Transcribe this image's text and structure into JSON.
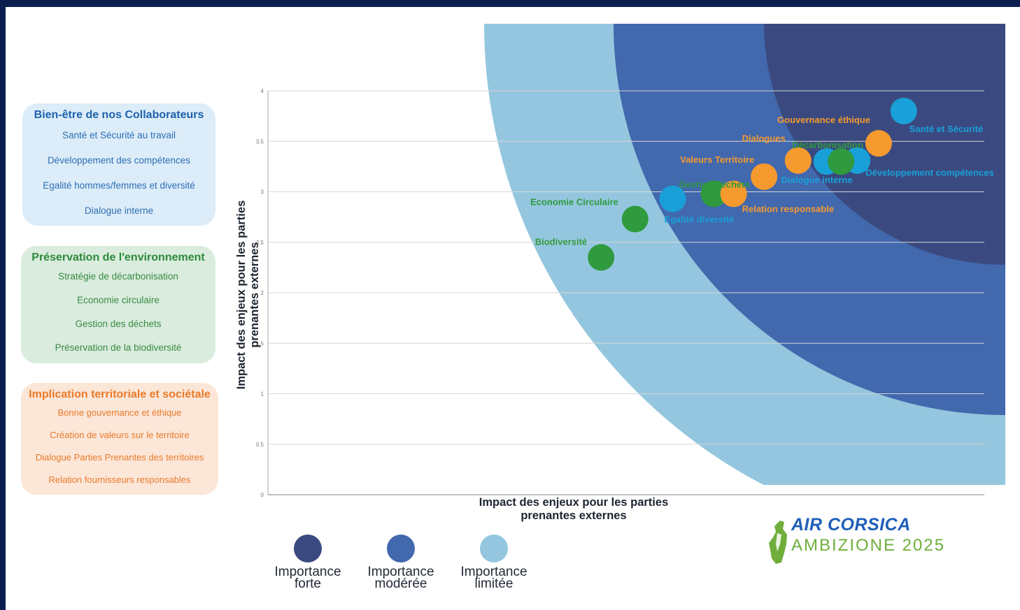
{
  "colors": {
    "importance_forte": "#3a4a80",
    "importance_moderee": "#4268ae",
    "importance_limitee": "#94c7df",
    "collaborateurs": "#1aa0d8",
    "environnement": "#2f9a3e",
    "territoire": "#f59a2e"
  },
  "legend_boxes": [
    {
      "title": "Bien-être de nos Collaborateurs",
      "items": [
        "Santé et Sécurité au travail",
        "Développement des compétences",
        "Egalité hommes/femmes et diversité",
        "Dialogue interne"
      ]
    },
    {
      "title": "Préservation de l'environnement",
      "items": [
        "Stratégie de décarbonisation",
        "Economie circulaire",
        "Gestion des déchets",
        "Préservation de la biodiversité"
      ]
    },
    {
      "title": "Implication territoriale et sociétale",
      "items": [
        "Bonne gouvernance et éthique",
        "Création de valeurs sur le territoire",
        "Dialogue Parties Prenantes des territoires",
        "Relation fournisseurs responsables"
      ]
    }
  ],
  "importance_legend": [
    {
      "label_line1": "Importance",
      "label_line2": "forte",
      "color": "#3a4a80"
    },
    {
      "label_line1": "Importance",
      "label_line2": "modérée",
      "color": "#4268ae"
    },
    {
      "label_line1": "Importance",
      "label_line2": "limitée",
      "color": "#94c7df"
    }
  ],
  "logo": {
    "name": "AIR CORSICA",
    "subtitle": "AMBIZIONE 2025"
  },
  "chart_data": {
    "type": "scatter",
    "xlabel": "Impact des enjeux pour les parties prenantes externes",
    "ylabel": "Impact des enjeux pour les parties prenantes externes",
    "ylim": [
      0,
      4
    ],
    "y_ticks": [
      "0",
      "0.5",
      "1",
      "1.5",
      "2",
      "2.5",
      "3",
      "3.5",
      "4"
    ],
    "xlim": [
      0,
      4
    ],
    "grid": "horizontal",
    "points": [
      {
        "label": "Santé et Sécurité",
        "category": "collaborateurs",
        "x": 3.55,
        "y": 3.8
      },
      {
        "label": "Développement compétences",
        "category": "collaborateurs",
        "x": 3.29,
        "y": 3.31
      },
      {
        "label": "Dialogue interne",
        "category": "collaborateurs",
        "x": 3.12,
        "y": 3.3
      },
      {
        "label": "Egalité diversité",
        "category": "collaborateurs",
        "x": 2.26,
        "y": 2.93
      },
      {
        "label": "Décarbonisation",
        "category": "environnement",
        "x": 3.2,
        "y": 3.3
      },
      {
        "label": "Gestion déchets",
        "category": "environnement",
        "x": 2.49,
        "y": 2.98
      },
      {
        "label": "Economie Circulaire",
        "category": "environnement",
        "x": 2.05,
        "y": 2.73
      },
      {
        "label": "Biodiversité",
        "category": "environnement",
        "x": 1.86,
        "y": 2.35
      },
      {
        "label": "Gouvernance éthique",
        "category": "territoire",
        "x": 3.41,
        "y": 3.48
      },
      {
        "label": "Dialogues",
        "category": "territoire",
        "x": 2.96,
        "y": 3.31
      },
      {
        "label": "Valeurs Territoire",
        "category": "territoire",
        "x": 2.77,
        "y": 3.15
      },
      {
        "label": "Relation responsable",
        "category": "territoire",
        "x": 2.6,
        "y": 2.98
      }
    ]
  }
}
